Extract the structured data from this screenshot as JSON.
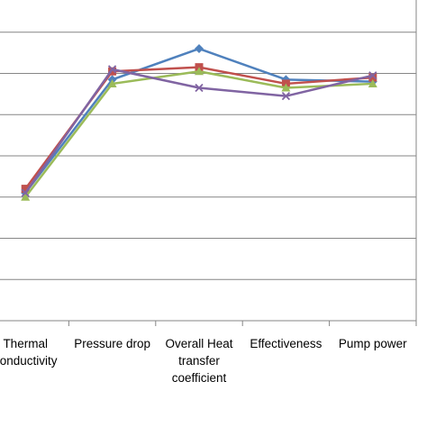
{
  "chart_data": {
    "type": "line",
    "categories": [
      "Thermal conductivity",
      "Pressure drop",
      "Overall Heat transfer coefficient",
      "Effectiveness",
      "Pump power"
    ],
    "category_lines": [
      [
        "Thermal",
        "conductivity"
      ],
      [
        "Pressure drop"
      ],
      [
        "Overall Heat",
        "transfer",
        "coefficient"
      ],
      [
        "Effectiveness"
      ],
      [
        "Pump power"
      ]
    ],
    "ylim": [
      0,
      8
    ],
    "gridlines": true,
    "legend": "none",
    "series": [
      {
        "color": "#4f81bd",
        "marker": "diamond",
        "values": [
          3.1,
          5.85,
          6.6,
          5.85,
          5.8
        ]
      },
      {
        "color": "#c0504d",
        "marker": "square",
        "values": [
          3.2,
          6.05,
          6.15,
          5.75,
          5.9
        ]
      },
      {
        "color": "#9bbb59",
        "marker": "triangle",
        "values": [
          3.0,
          5.75,
          6.05,
          5.65,
          5.75
        ]
      },
      {
        "color": "#8064a2",
        "marker": "x",
        "values": [
          3.1,
          6.1,
          5.65,
          5.45,
          5.95
        ]
      }
    ]
  }
}
